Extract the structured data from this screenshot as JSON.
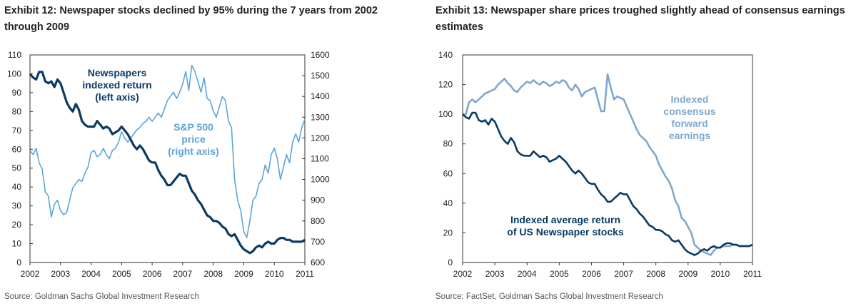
{
  "exhibits": [
    {
      "title": "Exhibit 12: Newspaper stocks declined by 95% during the 7 years from 2002 through 2009",
      "source": "Source: Goldman Sachs Global Investment Research"
    },
    {
      "title": "Exhibit 13: Newspaper share prices troughed slightly ahead of consensus earnings estimates",
      "source": "Source: FactSet, Goldman Sachs Global Investment Research"
    }
  ],
  "colors": {
    "dark": "#0b3a63",
    "light": "#5ca4d8",
    "mid": "#7fa8cc",
    "axis": "#333333"
  },
  "chart_data": [
    {
      "type": "line",
      "xlim": [
        2002,
        2011
      ],
      "x_ticks": [
        "2002",
        "2003",
        "2004",
        "2005",
        "2006",
        "2007",
        "2008",
        "2009",
        "2010",
        "2011"
      ],
      "ylim_left": [
        0,
        110
      ],
      "y_ticks_left": [
        "0",
        "10",
        "20",
        "30",
        "40",
        "50",
        "60",
        "70",
        "80",
        "90",
        "100",
        "110"
      ],
      "ylim_right": [
        600,
        1600
      ],
      "y_ticks_right": [
        "600",
        "700",
        "800",
        "900",
        "1000",
        "1100",
        "1200",
        "1300",
        "1400",
        "1500",
        "1600"
      ],
      "grid": false,
      "annotations": [
        {
          "lines": [
            "Newspapers",
            "indexed return",
            "(left axis)"
          ],
          "series": "newspapers"
        },
        {
          "lines": [
            "S&P 500",
            "price",
            "(right axis)"
          ],
          "series": "sp500"
        }
      ],
      "series": [
        {
          "key": "newspapers",
          "axis": "left",
          "color": "#0b3a63",
          "width": 3.2,
          "x": [
            2002.0,
            2002.1,
            2002.2,
            2002.3,
            2002.4,
            2002.5,
            2002.6,
            2002.7,
            2002.8,
            2002.9,
            2003.0,
            2003.1,
            2003.2,
            2003.3,
            2003.4,
            2003.5,
            2003.6,
            2003.7,
            2003.8,
            2003.9,
            2004.0,
            2004.1,
            2004.2,
            2004.3,
            2004.4,
            2004.5,
            2004.6,
            2004.7,
            2004.8,
            2004.9,
            2005.0,
            2005.1,
            2005.2,
            2005.3,
            2005.4,
            2005.5,
            2005.6,
            2005.7,
            2005.8,
            2005.9,
            2006.0,
            2006.1,
            2006.2,
            2006.3,
            2006.4,
            2006.5,
            2006.6,
            2006.7,
            2006.8,
            2006.9,
            2007.0,
            2007.1,
            2007.2,
            2007.3,
            2007.4,
            2007.5,
            2007.6,
            2007.7,
            2007.8,
            2007.9,
            2008.0,
            2008.1,
            2008.2,
            2008.3,
            2008.4,
            2008.5,
            2008.6,
            2008.7,
            2008.8,
            2008.9,
            2009.0,
            2009.1,
            2009.2,
            2009.3,
            2009.4,
            2009.5,
            2009.6,
            2009.7,
            2009.8,
            2009.9,
            2010.0,
            2010.1,
            2010.2,
            2010.3,
            2010.4,
            2010.5,
            2010.6,
            2010.7,
            2010.8,
            2010.9,
            2011.0
          ],
          "y": [
            100,
            98,
            97,
            101,
            101,
            96,
            95,
            96,
            93,
            97,
            95,
            90,
            85,
            82,
            80,
            84,
            81,
            75,
            73,
            72,
            72,
            72,
            75,
            73,
            71,
            72,
            71,
            68,
            69,
            70,
            72,
            70,
            68,
            65,
            62,
            60,
            62,
            60,
            57,
            54,
            53,
            53,
            49,
            46,
            44,
            41,
            41,
            43,
            45,
            47,
            46,
            46,
            42,
            38,
            36,
            33,
            31,
            28,
            25,
            24,
            22,
            22,
            21,
            19,
            18,
            15,
            14,
            15,
            12,
            9,
            7,
            6,
            5,
            6,
            8,
            9,
            8,
            10,
            11,
            10,
            10,
            12,
            13,
            13,
            12,
            12,
            11,
            11,
            11,
            11,
            12
          ]
        },
        {
          "key": "sp500",
          "axis": "right",
          "color": "#5ca4d8",
          "width": 1.6,
          "x": [
            2002.0,
            2002.1,
            2002.2,
            2002.3,
            2002.4,
            2002.5,
            2002.6,
            2002.7,
            2002.8,
            2002.9,
            2003.0,
            2003.1,
            2003.2,
            2003.3,
            2003.4,
            2003.5,
            2003.6,
            2003.7,
            2003.8,
            2003.9,
            2004.0,
            2004.1,
            2004.2,
            2004.3,
            2004.4,
            2004.5,
            2004.6,
            2004.7,
            2004.8,
            2004.9,
            2005.0,
            2005.1,
            2005.2,
            2005.3,
            2005.4,
            2005.5,
            2005.6,
            2005.7,
            2005.8,
            2005.9,
            2006.0,
            2006.1,
            2006.2,
            2006.3,
            2006.4,
            2006.5,
            2006.6,
            2006.7,
            2006.8,
            2006.9,
            2007.0,
            2007.1,
            2007.2,
            2007.3,
            2007.4,
            2007.5,
            2007.6,
            2007.7,
            2007.8,
            2007.9,
            2008.0,
            2008.1,
            2008.2,
            2008.3,
            2008.4,
            2008.5,
            2008.6,
            2008.7,
            2008.8,
            2008.9,
            2009.0,
            2009.1,
            2009.2,
            2009.3,
            2009.4,
            2009.5,
            2009.6,
            2009.7,
            2009.8,
            2009.9,
            2010.0,
            2010.1,
            2010.2,
            2010.3,
            2010.4,
            2010.5,
            2010.6,
            2010.7,
            2010.8,
            2010.9,
            2011.0
          ],
          "y": [
            1140,
            1120,
            1150,
            1080,
            1050,
            940,
            920,
            820,
            880,
            900,
            850,
            830,
            840,
            900,
            960,
            980,
            1000,
            990,
            1030,
            1060,
            1130,
            1140,
            1110,
            1120,
            1150,
            1120,
            1100,
            1140,
            1150,
            1180,
            1230,
            1200,
            1180,
            1200,
            1220,
            1240,
            1250,
            1270,
            1280,
            1300,
            1280,
            1300,
            1320,
            1300,
            1340,
            1380,
            1400,
            1420,
            1390,
            1420,
            1460,
            1520,
            1430,
            1550,
            1520,
            1470,
            1420,
            1490,
            1390,
            1380,
            1330,
            1300,
            1350,
            1400,
            1380,
            1280,
            1250,
            1000,
            900,
            850,
            750,
            720,
            800,
            900,
            920,
            980,
            1000,
            1070,
            1030,
            1120,
            1150,
            1100,
            1000,
            1060,
            1120,
            1080,
            1180,
            1220,
            1180,
            1250,
            1290
          ]
        }
      ]
    },
    {
      "type": "line",
      "xlim": [
        2002,
        2011
      ],
      "x_ticks": [
        "2002",
        "2003",
        "2004",
        "2005",
        "2006",
        "2007",
        "2008",
        "2009",
        "2010",
        "2011"
      ],
      "ylim": [
        0,
        140
      ],
      "y_ticks": [
        "0",
        "20",
        "40",
        "60",
        "80",
        "100",
        "120",
        "140"
      ],
      "grid": false,
      "annotations": [
        {
          "lines": [
            "Indexed",
            "consensus",
            "forward",
            "earnings"
          ],
          "series": "earnings"
        },
        {
          "lines": [
            "Indexed average return",
            "of US Newspaper stocks"
          ],
          "series": "newspapers"
        }
      ],
      "series": [
        {
          "key": "earnings",
          "color": "#7fa8cc",
          "width": 2.6,
          "x": [
            2002.0,
            2002.1,
            2002.2,
            2002.3,
            2002.4,
            2002.5,
            2002.6,
            2002.7,
            2002.8,
            2002.9,
            2003.0,
            2003.1,
            2003.2,
            2003.3,
            2003.4,
            2003.5,
            2003.6,
            2003.7,
            2003.8,
            2003.9,
            2004.0,
            2004.1,
            2004.2,
            2004.3,
            2004.4,
            2004.5,
            2004.6,
            2004.7,
            2004.8,
            2004.9,
            2005.0,
            2005.1,
            2005.2,
            2005.3,
            2005.4,
            2005.5,
            2005.6,
            2005.7,
            2005.8,
            2005.9,
            2006.0,
            2006.1,
            2006.2,
            2006.3,
            2006.4,
            2006.5,
            2006.6,
            2006.7,
            2006.8,
            2006.9,
            2007.0,
            2007.1,
            2007.2,
            2007.3,
            2007.4,
            2007.5,
            2007.6,
            2007.7,
            2007.8,
            2007.9,
            2008.0,
            2008.1,
            2008.2,
            2008.3,
            2008.4,
            2008.5,
            2008.6,
            2008.7,
            2008.8,
            2008.9,
            2009.0,
            2009.1,
            2009.2,
            2009.3,
            2009.4,
            2009.5,
            2009.6,
            2009.7,
            2009.8,
            2009.9,
            2010.0,
            2010.1,
            2010.2,
            2010.3,
            2010.4,
            2010.5,
            2010.6,
            2010.7,
            2010.8,
            2010.9,
            2011.0
          ],
          "y": [
            100,
            100,
            108,
            110,
            108,
            110,
            112,
            114,
            115,
            116,
            117,
            120,
            122,
            124,
            121,
            119,
            116,
            115,
            118,
            120,
            122,
            121,
            123,
            121,
            120,
            122,
            121,
            119,
            120,
            122,
            121,
            123,
            122,
            118,
            116,
            120,
            117,
            112,
            115,
            116,
            117,
            118,
            110,
            102,
            102,
            127,
            118,
            110,
            112,
            111,
            110,
            105,
            100,
            95,
            90,
            86,
            84,
            82,
            78,
            75,
            72,
            66,
            62,
            58,
            55,
            50,
            42,
            38,
            30,
            28,
            24,
            20,
            12,
            10,
            8,
            7,
            6,
            5,
            8,
            10,
            10,
            11,
            11,
            11,
            12,
            12,
            11,
            11,
            11,
            11,
            12
          ]
        },
        {
          "key": "newspapers",
          "color": "#0b3a63",
          "width": 2.6,
          "x": [
            2002.0,
            2002.1,
            2002.2,
            2002.3,
            2002.4,
            2002.5,
            2002.6,
            2002.7,
            2002.8,
            2002.9,
            2003.0,
            2003.1,
            2003.2,
            2003.3,
            2003.4,
            2003.5,
            2003.6,
            2003.7,
            2003.8,
            2003.9,
            2004.0,
            2004.1,
            2004.2,
            2004.3,
            2004.4,
            2004.5,
            2004.6,
            2004.7,
            2004.8,
            2004.9,
            2005.0,
            2005.1,
            2005.2,
            2005.3,
            2005.4,
            2005.5,
            2005.6,
            2005.7,
            2005.8,
            2005.9,
            2006.0,
            2006.1,
            2006.2,
            2006.3,
            2006.4,
            2006.5,
            2006.6,
            2006.7,
            2006.8,
            2006.9,
            2007.0,
            2007.1,
            2007.2,
            2007.3,
            2007.4,
            2007.5,
            2007.6,
            2007.7,
            2007.8,
            2007.9,
            2008.0,
            2008.1,
            2008.2,
            2008.3,
            2008.4,
            2008.5,
            2008.6,
            2008.7,
            2008.8,
            2008.9,
            2009.0,
            2009.1,
            2009.2,
            2009.3,
            2009.4,
            2009.5,
            2009.6,
            2009.7,
            2009.8,
            2009.9,
            2010.0,
            2010.1,
            2010.2,
            2010.3,
            2010.4,
            2010.5,
            2010.6,
            2010.7,
            2010.8,
            2010.9,
            2011.0
          ],
          "y": [
            100,
            98,
            97,
            101,
            101,
            96,
            95,
            96,
            93,
            97,
            95,
            90,
            85,
            82,
            80,
            84,
            81,
            75,
            73,
            72,
            72,
            72,
            75,
            73,
            71,
            72,
            71,
            68,
            69,
            70,
            72,
            70,
            68,
            65,
            62,
            60,
            62,
            60,
            57,
            54,
            53,
            53,
            49,
            46,
            44,
            41,
            41,
            43,
            45,
            47,
            46,
            46,
            42,
            38,
            36,
            33,
            31,
            28,
            25,
            24,
            22,
            22,
            21,
            19,
            18,
            15,
            14,
            15,
            12,
            9,
            7,
            6,
            5,
            6,
            8,
            9,
            8,
            10,
            11,
            10,
            10,
            12,
            13,
            13,
            12,
            12,
            11,
            11,
            11,
            11,
            12
          ]
        }
      ]
    }
  ]
}
